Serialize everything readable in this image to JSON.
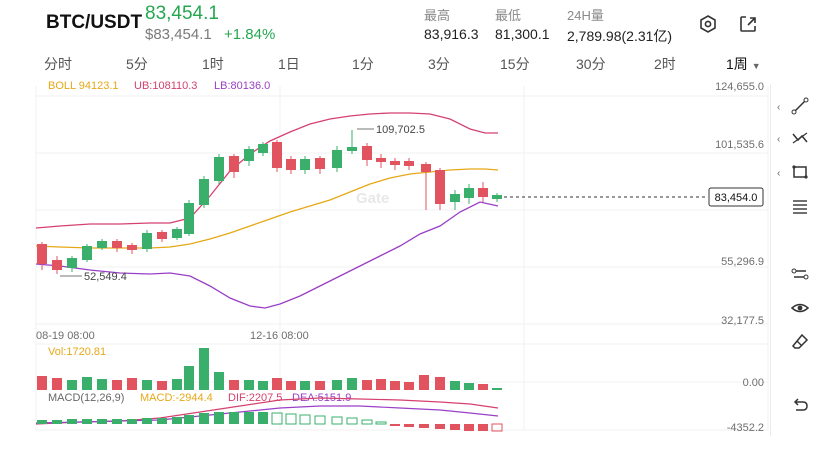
{
  "header": {
    "pair": "BTC/USDT",
    "last_price": "83,454.1",
    "usd_price": "$83,454.1",
    "change_pct": "+1.84%",
    "stats": [
      {
        "label": "最高",
        "value": "83,916.3"
      },
      {
        "label": "最低",
        "value": "81,300.1"
      },
      {
        "label": "24H量",
        "value": "2,789.98(2.31亿)"
      }
    ],
    "icons": [
      "settings-icon",
      "share-icon"
    ]
  },
  "intervals": [
    {
      "label": "分时"
    },
    {
      "label": "5分"
    },
    {
      "label": "1时"
    },
    {
      "label": "1日"
    },
    {
      "label": "1分"
    },
    {
      "label": "3分"
    },
    {
      "label": "15分"
    },
    {
      "label": "30分"
    },
    {
      "label": "2时"
    },
    {
      "label": "1周",
      "active": true
    }
  ],
  "overlay": {
    "boll": "BOLL 94123.1",
    "ub": "UB:108110.3",
    "lb": "LB:80136.0",
    "current_price_tag": "83,454.0",
    "high_marker": "109,702.5",
    "low_marker": "52,549.4",
    "watermark": "Gate"
  },
  "price_axis": [
    "124,655.0",
    "101,535.6",
    "55,296.9",
    "32,177.5"
  ],
  "time_axis": [
    "08-19 08:00",
    "12-16 08:00"
  ],
  "volume": {
    "label": "Vol:1720.81",
    "axis": "0.00"
  },
  "macd": {
    "label": "MACD(12,26,9)",
    "macd": "MACD:-2944.4",
    "dif": "DIF:2207.5",
    "dea": "DEA:5151.9",
    "axis_low": "-4352.2"
  },
  "colors": {
    "up": "#3aaf6c",
    "down": "#e0535f",
    "boll_mid": "#e6a817",
    "boll_upper": "#d5416f",
    "boll_lower": "#9a3fc7",
    "accent_green": "#25a750"
  },
  "toolbar": [
    "trend-line-icon",
    "polyline-icon",
    "rectangle-icon",
    "fib-lines-icon",
    "indicator-icon",
    "eye-icon",
    "eraser-icon",
    "undo-icon"
  ]
}
